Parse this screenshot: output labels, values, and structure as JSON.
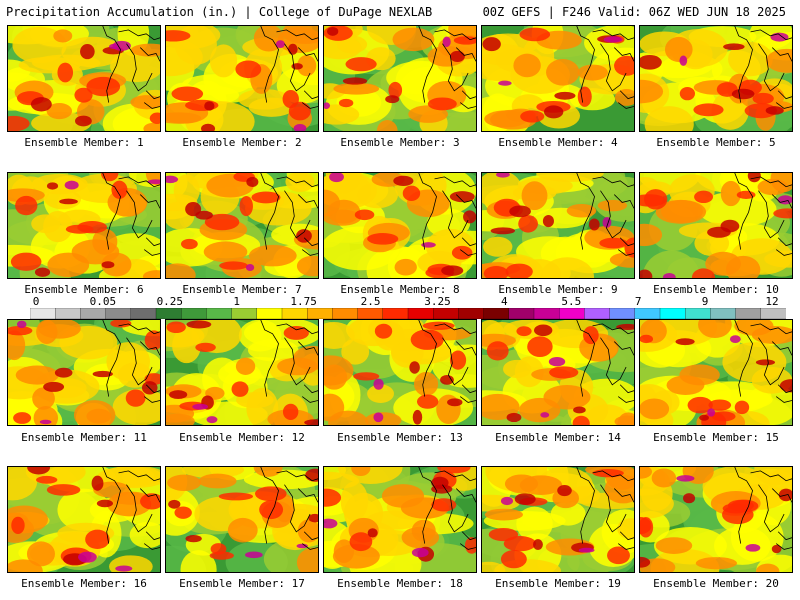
{
  "header": {
    "title": "Precipitation Accumulation (in.) | College of DuPage NEXLAB",
    "valid": "00Z GEFS | F246 Valid: 06Z WED JUN 18 2025"
  },
  "colorbar": {
    "labels": [
      "0",
      "0.05",
      "0.25",
      "1",
      "1.75",
      "2.5",
      "3.25",
      "4",
      "5.5",
      "7",
      "9",
      "12"
    ],
    "colors": [
      "#e6e6e6",
      "#c8c8c8",
      "#a9a9a9",
      "#8c8c8c",
      "#6e6e6e",
      "#2e7d32",
      "#3f9a3a",
      "#58b848",
      "#9acd32",
      "#ffff00",
      "#ffd700",
      "#ffb000",
      "#ff8c00",
      "#ff5a00",
      "#ff2a00",
      "#e60000",
      "#c40000",
      "#a00000",
      "#7a0000",
      "#a0006a",
      "#c80096",
      "#f000c8",
      "#b060ff",
      "#7090ff",
      "#40c8ff",
      "#00ffff",
      "#40e0d0",
      "#80c0c0",
      "#a0a0a0",
      "#c0c0c0"
    ]
  },
  "panels": [
    {
      "label": "Ensemble Member: 1"
    },
    {
      "label": "Ensemble Member: 2"
    },
    {
      "label": "Ensemble Member: 3"
    },
    {
      "label": "Ensemble Member: 4"
    },
    {
      "label": "Ensemble Member: 5"
    },
    {
      "label": "Ensemble Member: 6"
    },
    {
      "label": "Ensemble Member: 7"
    },
    {
      "label": "Ensemble Member: 8"
    },
    {
      "label": "Ensemble Member: 9"
    },
    {
      "label": "Ensemble Member: 10"
    },
    {
      "label": "Ensemble Member: 11"
    },
    {
      "label": "Ensemble Member: 12"
    },
    {
      "label": "Ensemble Member: 13"
    },
    {
      "label": "Ensemble Member: 14"
    },
    {
      "label": "Ensemble Member: 15"
    },
    {
      "label": "Ensemble Member: 16"
    },
    {
      "label": "Ensemble Member: 17"
    },
    {
      "label": "Ensemble Member: 18"
    },
    {
      "label": "Ensemble Member: 19"
    },
    {
      "label": "Ensemble Member: 20"
    }
  ]
}
